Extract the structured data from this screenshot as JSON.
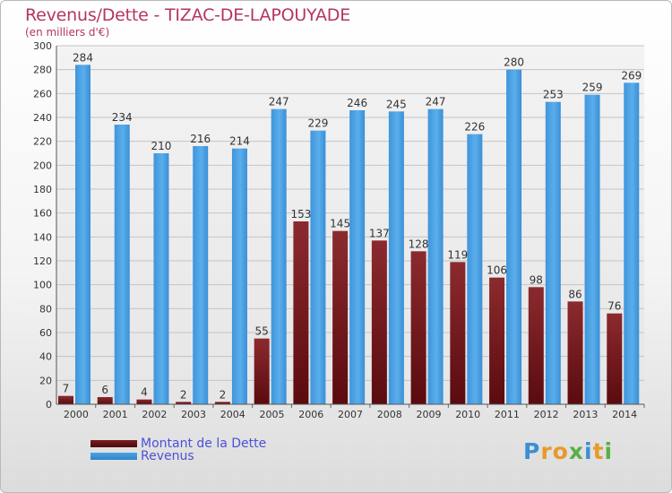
{
  "header": {
    "title": "Revenus/Dette - TIZAC-DE-LAPOUYADE",
    "subtitle": "(en milliers d'€)"
  },
  "legend": {
    "items": [
      {
        "label": "Montant de la Dette",
        "color": "#7a1a1e"
      },
      {
        "label": "Revenus",
        "color": "#4ea3e6"
      }
    ]
  },
  "logo": {
    "letters": [
      "P",
      "r",
      "o",
      "x",
      "i",
      "t",
      "i"
    ],
    "colors": [
      "#3b8fd6",
      "#e79a2a",
      "#e79a2a",
      "#59b046",
      "#3b8fd6",
      "#e79a2a",
      "#59b046"
    ]
  },
  "chart_data": {
    "type": "bar",
    "title": "Revenus/Dette - TIZAC-DE-LAPOUYADE",
    "subtitle": "(en milliers d'€)",
    "categories": [
      "2000",
      "2001",
      "2002",
      "2003",
      "2004",
      "2005",
      "2006",
      "2007",
      "2008",
      "2009",
      "2010",
      "2011",
      "2012",
      "2013",
      "2014"
    ],
    "series": [
      {
        "name": "Montant de la Dette",
        "color": "#7a1a1e",
        "values": [
          7,
          6,
          4,
          2,
          2,
          55,
          153,
          145,
          137,
          128,
          119,
          106,
          98,
          86,
          76
        ]
      },
      {
        "name": "Revenus",
        "color": "#4ea3e6",
        "values": [
          284,
          234,
          210,
          216,
          214,
          247,
          229,
          246,
          245,
          247,
          226,
          280,
          253,
          259,
          269
        ]
      }
    ],
    "ylim": [
      0,
      300
    ],
    "yticks": [
      0,
      20,
      40,
      60,
      80,
      100,
      120,
      140,
      160,
      180,
      200,
      220,
      240,
      260,
      280,
      300
    ],
    "grid": true,
    "legend_position": "bottom-left"
  }
}
